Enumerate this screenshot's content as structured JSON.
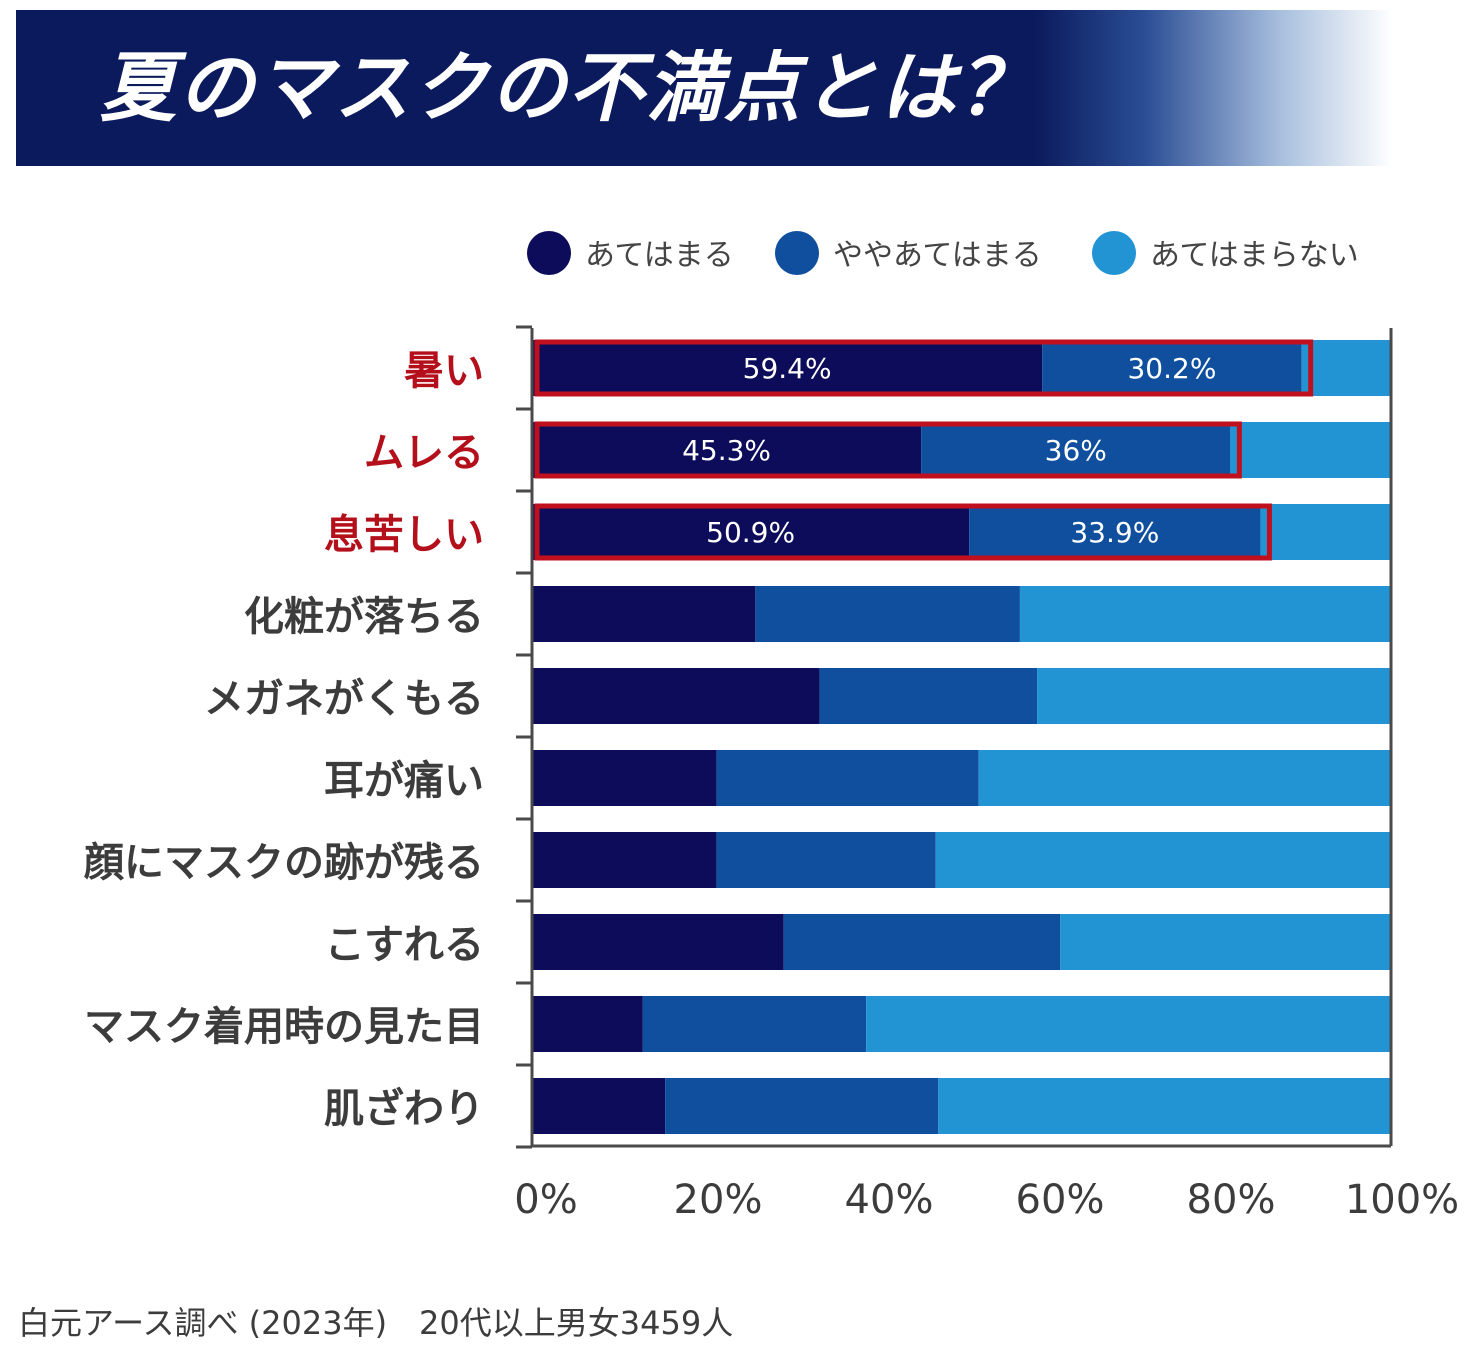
{
  "title": "夏のマスクの不満点とは？",
  "colors": {
    "banner": "#0b1a5c",
    "highlight": "#c0101e",
    "series": [
      "#0c0c5a",
      "#0f4f9e",
      "#2294d4"
    ]
  },
  "chart_data": {
    "type": "stacked-horizontal-bar",
    "title": "夏のマスクの不満点とは？",
    "legend": [
      "あてはまる",
      "ややあてはまる",
      "あてはまらない"
    ],
    "legend_placement": "top-right",
    "categories": [
      "暑い",
      "ムレる",
      "息苦しい",
      "化粧が落ちる",
      "メガネがくもる",
      "耳が痛い",
      "顔にマスクの跡が残る",
      "こすれる",
      "マスク着用時の見た目",
      "肌ざわり"
    ],
    "highlighted_categories": [
      "暑い",
      "ムレる",
      "息苦しい"
    ],
    "series": [
      {
        "name": "あてはまる",
        "values": [
          59.4,
          45.3,
          50.9,
          26,
          33.5,
          21.5,
          21.5,
          29.3,
          12.9,
          15.5
        ]
      },
      {
        "name": "ややあてはまる",
        "values": [
          30.2,
          36,
          33.9,
          30.8,
          25.3,
          30.5,
          25.5,
          32.2,
          26,
          31.8
        ]
      },
      {
        "name": "あてはまらない",
        "values": [
          10.4,
          18.7,
          15.2,
          43.2,
          41.2,
          48,
          53,
          38.5,
          61.1,
          52.7
        ]
      }
    ],
    "data_labels": [
      {
        "category": "暑い",
        "labels": [
          "59.4%",
          "30.2%"
        ]
      },
      {
        "category": "ムレる",
        "labels": [
          "45.3%",
          "36%"
        ]
      },
      {
        "category": "息苦しい",
        "labels": [
          "50.9%",
          "33.9%"
        ]
      }
    ],
    "xlim": [
      0,
      100
    ],
    "xticks": [
      0,
      20,
      40,
      60,
      80,
      100
    ],
    "xtick_labels": [
      "0%",
      "20%",
      "40%",
      "60%",
      "80%",
      "100%"
    ]
  },
  "source": "白元アース調べ (2023年)　20代以上男女3459人"
}
